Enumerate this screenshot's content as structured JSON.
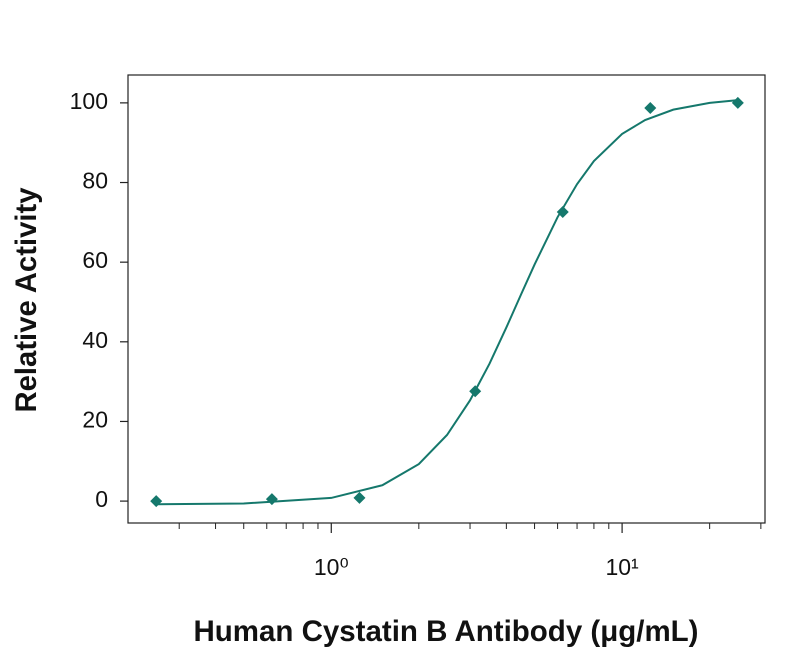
{
  "chart_data": {
    "type": "scatter",
    "x_label": "Human Cystatin B Antibody (μg/mL)",
    "y_label": "Relative Activity",
    "xscale": "log",
    "xlim": [
      0.2,
      31
    ],
    "ylim": [
      -5.5,
      107
    ],
    "xticks": [
      {
        "value": 1,
        "label": "10⁰"
      },
      {
        "value": 10,
        "label": "10¹"
      }
    ],
    "xminorticks": [
      0.3,
      0.4,
      0.5,
      0.6,
      0.7,
      0.8,
      0.9,
      2,
      3,
      4,
      5,
      6,
      7,
      8,
      9,
      20,
      30
    ],
    "yticks": [
      0,
      20,
      40,
      60,
      80,
      100
    ],
    "series": [
      {
        "type": "scatter",
        "color": "#15786c",
        "x": [
          0.25,
          0.625,
          1.25,
          3.125,
          6.25,
          12.5,
          25
        ],
        "values": [
          0,
          0.5,
          0.8,
          27.6,
          72.6,
          98.7,
          100
        ]
      },
      {
        "type": "line",
        "color": "#15786c",
        "x": [
          0.25,
          0.5,
          1,
          1.5,
          2,
          2.5,
          3,
          3.5,
          4,
          4.5,
          5,
          6,
          7,
          8,
          10,
          12,
          15,
          20,
          25
        ],
        "values": [
          -0.8,
          -0.6,
          0.8,
          4.0,
          9.3,
          16.6,
          25.3,
          34.5,
          43.6,
          52.0,
          59.4,
          71.3,
          79.6,
          85.4,
          92.2,
          95.7,
          98.3,
          100.0,
          100.7
        ]
      }
    ]
  }
}
